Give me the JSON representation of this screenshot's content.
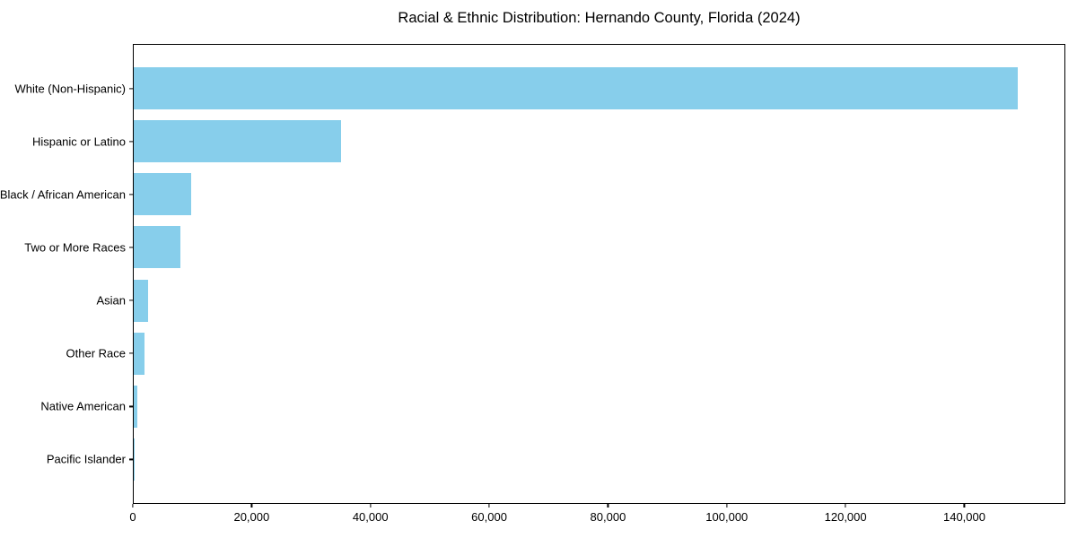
{
  "chart_data": {
    "type": "bar",
    "orientation": "horizontal",
    "title": "Racial & Ethnic Distribution: Hernando County, Florida (2024)",
    "categories": [
      "White (Non-Hispanic)",
      "Hispanic or Latino",
      "Black / African American",
      "Two or More Races",
      "Asian",
      "Other Race",
      "Native American",
      "Pacific Islander"
    ],
    "values": [
      149200,
      35000,
      9650,
      7800,
      2400,
      1750,
      550,
      100
    ],
    "xlabel": "",
    "ylabel": "",
    "xlim": [
      0,
      157000
    ],
    "x_ticks": [
      0,
      20000,
      40000,
      60000,
      80000,
      100000,
      120000,
      140000
    ],
    "x_tick_labels": [
      "0",
      "20,000",
      "40,000",
      "60,000",
      "80,000",
      "100,000",
      "120,000",
      "140,000"
    ],
    "grid": false,
    "legend": "none"
  },
  "colors": {
    "bar": "#87CEEB",
    "text": "#000000",
    "spine": "#000000",
    "background": "#ffffff"
  }
}
